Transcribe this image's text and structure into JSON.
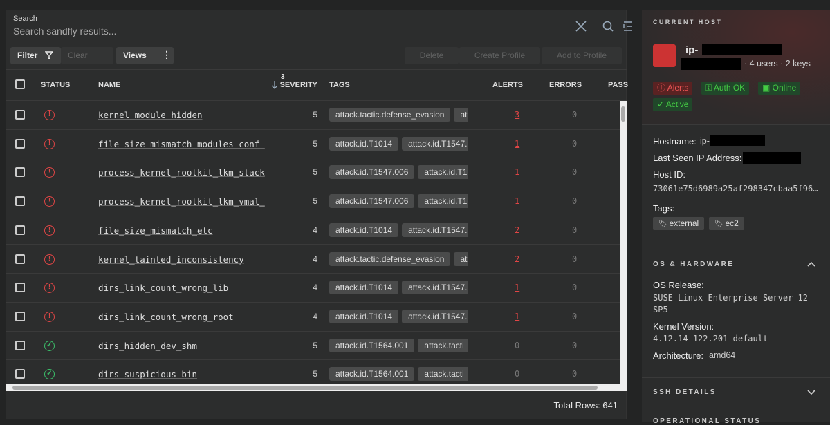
{
  "search": {
    "label": "Search",
    "placeholder": "Search sandfly results..."
  },
  "toolbar": {
    "filter": "Filter",
    "clear": "Clear",
    "views": "Views",
    "actions": [
      "Delete",
      "Create Profile",
      "Add to Profile"
    ]
  },
  "table": {
    "sort_order": "3",
    "columns": [
      "STATUS",
      "NAME",
      "SEVERITY",
      "TAGS",
      "ALERTS",
      "ERRORS",
      "PASS"
    ],
    "rows": [
      {
        "name": "kernel_module_hidden",
        "severity": 5,
        "tags": [
          "attack.tactic.defense_evasion",
          "at"
        ],
        "alerts": 3,
        "errors": 0
      },
      {
        "name": "file_size_mismatch_modules_conf_",
        "severity": 5,
        "tags": [
          "attack.id.T1014",
          "attack.id.T1547."
        ],
        "alerts": 1,
        "errors": 0
      },
      {
        "name": "process_kernel_rootkit_lkm_stack",
        "severity": 5,
        "tags": [
          "attack.id.T1547.006",
          "attack.id.T1"
        ],
        "alerts": 1,
        "errors": 0
      },
      {
        "name": "process_kernel_rootkit_lkm_vmal_",
        "severity": 5,
        "tags": [
          "attack.id.T1547.006",
          "attack.id.T1"
        ],
        "alerts": 1,
        "errors": 0
      },
      {
        "name": "file_size_mismatch_etc",
        "severity": 4,
        "tags": [
          "attack.id.T1014",
          "attack.id.T1547."
        ],
        "alerts": 2,
        "errors": 0
      },
      {
        "name": "kernel_tainted_inconsistency",
        "severity": 4,
        "tags": [
          "attack.tactic.defense_evasion",
          "at"
        ],
        "alerts": 2,
        "errors": 0
      },
      {
        "name": "dirs_link_count_wrong_lib",
        "severity": 4,
        "tags": [
          "attack.id.T1014",
          "attack.id.T1547."
        ],
        "alerts": 1,
        "errors": 0
      },
      {
        "name": "dirs_link_count_wrong_root",
        "severity": 4,
        "tags": [
          "attack.id.T1014",
          "attack.id.T1547."
        ],
        "alerts": 1,
        "errors": 0
      },
      {
        "name": "dirs_hidden_dev_shm",
        "severity": 5,
        "tags": [
          "attack.id.T1564.001",
          "attack.tacti"
        ],
        "alerts": 0,
        "errors": 0
      },
      {
        "name": "dirs_suspicious_bin",
        "severity": 5,
        "tags": [
          "attack.id.T1564.001",
          "attack.tacti"
        ],
        "alerts": 0,
        "errors": 0
      }
    ],
    "total": "Total Rows: 641"
  },
  "host": {
    "section": "CURRENT HOST",
    "name": "ip-",
    "users": "4 users",
    "keys": "2 keys",
    "badges": [
      "Alerts",
      "Auth OK",
      "Online",
      "Active"
    ],
    "fields": {
      "hostname_label": "Hostname:",
      "hostname": "ip-",
      "ip_label": "Last Seen IP Address:",
      "id_label": "Host ID:",
      "id": "73061e75d6989a25af298347cbaa5f96…",
      "tags_label": "Tags:",
      "tags": [
        "external",
        "ec2"
      ]
    },
    "os": {
      "title": "OS & HARDWARE",
      "release_label": "OS Release:",
      "release": "SUSE Linux Enterprise Server 12 SP5",
      "kernel_label": "Kernel Version:",
      "kernel": "4.12.14-122.201-default",
      "arch_label": "Architecture:",
      "arch": "amd64"
    },
    "ssh": {
      "title": "SSH DETAILS"
    },
    "ops": {
      "title": "OPERATIONAL STATUS"
    }
  }
}
